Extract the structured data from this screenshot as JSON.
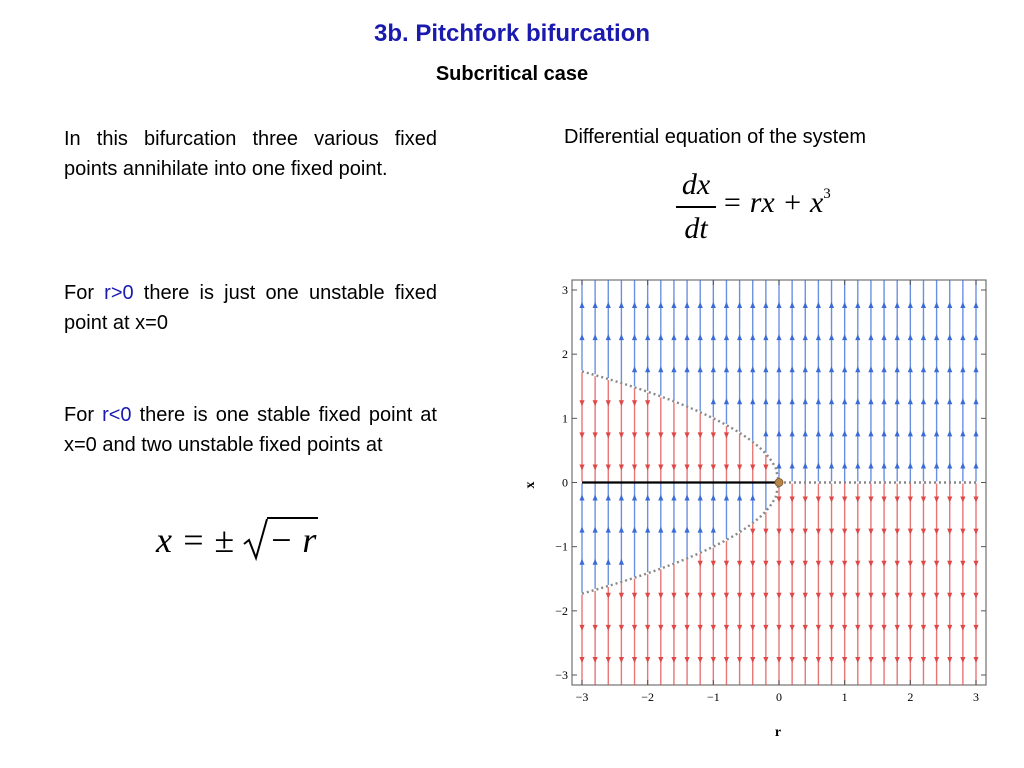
{
  "slide": {
    "title": "3b. Pitchfork bifurcation",
    "subtitle": "Subcritical case"
  },
  "text": {
    "para1": "In this bifurcation three various fixed points annihilate into one fixed point.",
    "para2_prefix": "For ",
    "para2_highlight": "r>0",
    "para2_suffix": " there is just one unstable fixed point at x=0",
    "para3_prefix": "For ",
    "para3_highlight": "r<0",
    "para3_suffix": " there is one stable fixed point at x=0 and two unstable fixed points at",
    "equation_label": "Differential equation of the system"
  },
  "equations": {
    "ode_numerator": "dx",
    "ode_denominator": "dt",
    "ode_rhs": "= rx + x",
    "ode_power": "3",
    "solution_lhs": "x = ±",
    "solution_radicand": "− r"
  },
  "chart_data": {
    "type": "scatter",
    "title": "",
    "xlabel": "r",
    "ylabel": "x",
    "xlim": [
      -3,
      3
    ],
    "ylim": [
      -3,
      3
    ],
    "xticks": [
      "−3",
      "−2",
      "−1",
      "0",
      "1",
      "2",
      "3"
    ],
    "yticks": [
      "3",
      "2",
      "1",
      "0",
      "−1",
      "−2",
      "−3"
    ],
    "field": "dx/dt = r x + x^3",
    "series": [
      {
        "type": "stable-branch",
        "x_range": [
          -3,
          0
        ],
        "y": 0
      },
      {
        "type": "unstable-branch",
        "curve": "x = ±sqrt(-r)",
        "x_range": [
          -3,
          0
        ]
      },
      {
        "type": "unstable-branch",
        "x_range": [
          0,
          3
        ],
        "y": 0
      }
    ],
    "bifurcation_point": {
      "x": 0,
      "y": 0
    },
    "colors": {
      "upward_flow": "#3b6bd6",
      "downward_flow": "#e04848",
      "stable": "#000000",
      "unstable": "#888888",
      "bifurcation_point": "#b8864b"
    }
  }
}
